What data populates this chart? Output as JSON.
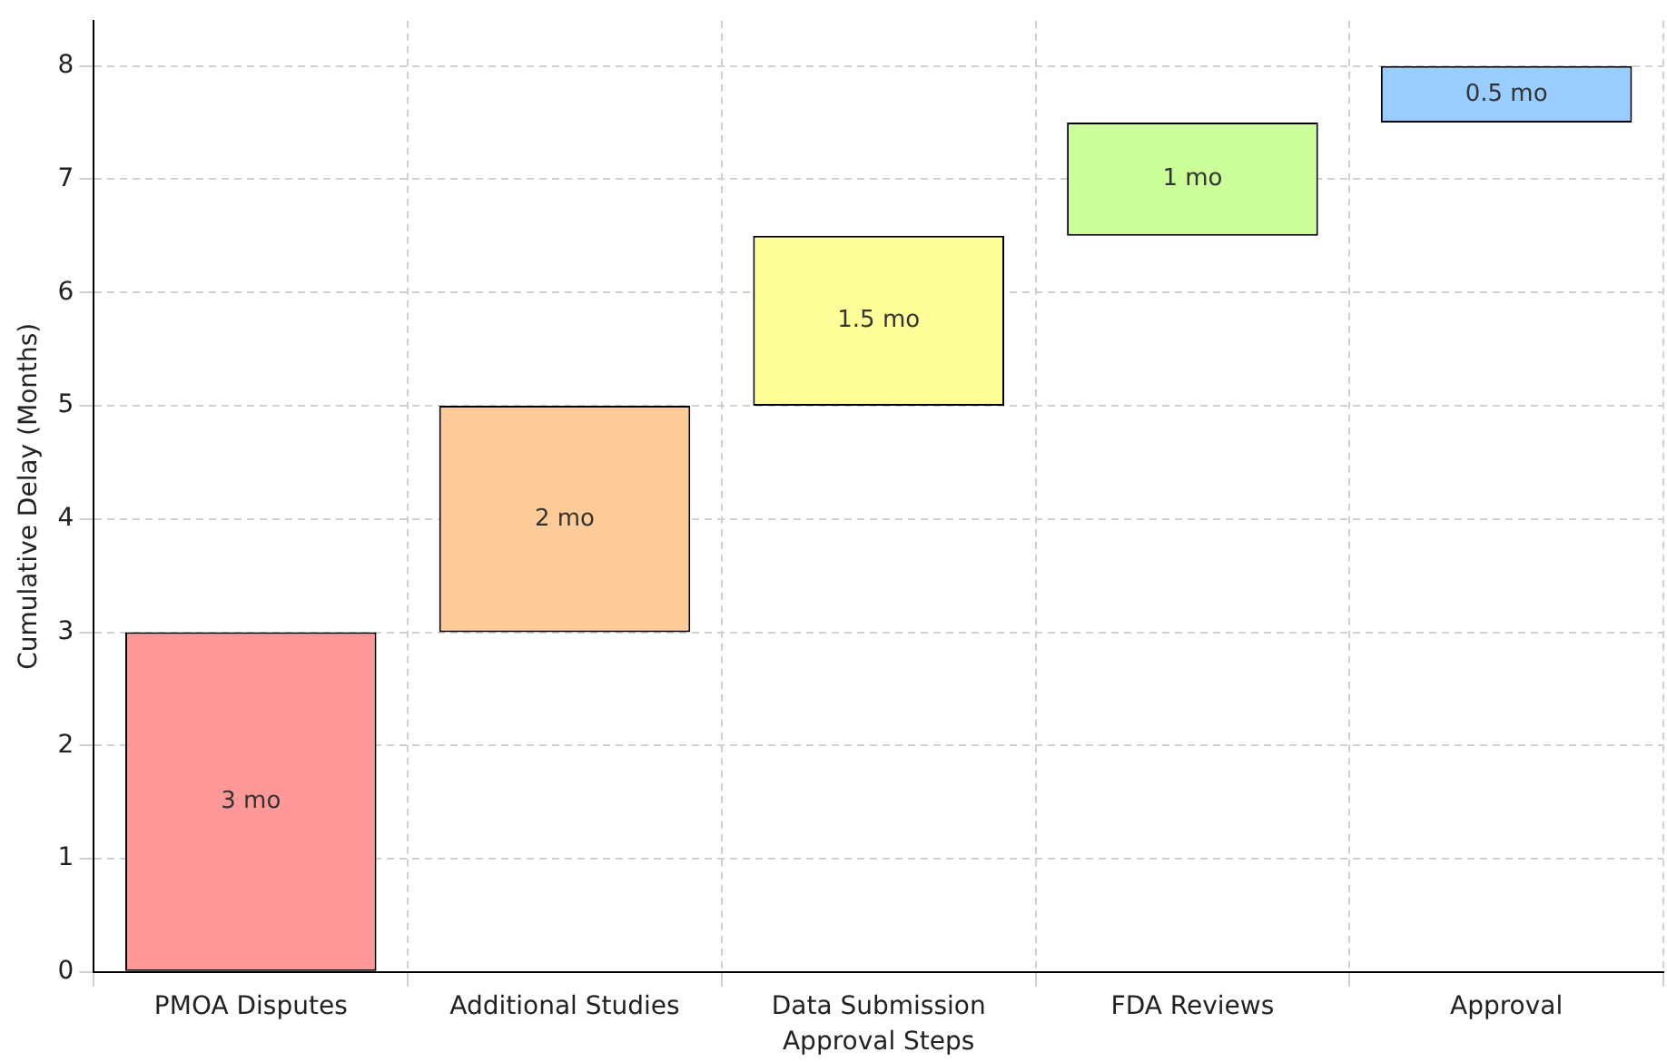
{
  "chart_data": {
    "type": "bar",
    "xlabel": "Approval Steps",
    "ylabel": "Cumulative Delay (Months)",
    "categories": [
      "PMOA Disputes",
      "Additional Studies",
      "Data Submission",
      "FDA Reviews",
      "Approval"
    ],
    "values": [
      3,
      2,
      1.5,
      1,
      0.5
    ],
    "base": [
      0,
      3,
      5,
      6.5,
      7.5
    ],
    "colors": [
      "#ff9999",
      "#ffcc99",
      "#ffff99",
      "#ccff99",
      "#99ccff"
    ],
    "value_labels": [
      "3 mo",
      "2 mo",
      "1.5 mo",
      "1 mo",
      "0.5 mo"
    ],
    "ylim": [
      0,
      8.4
    ],
    "yticks": [
      0,
      1,
      2,
      3,
      4,
      5,
      6,
      7,
      8
    ],
    "grid": true
  }
}
